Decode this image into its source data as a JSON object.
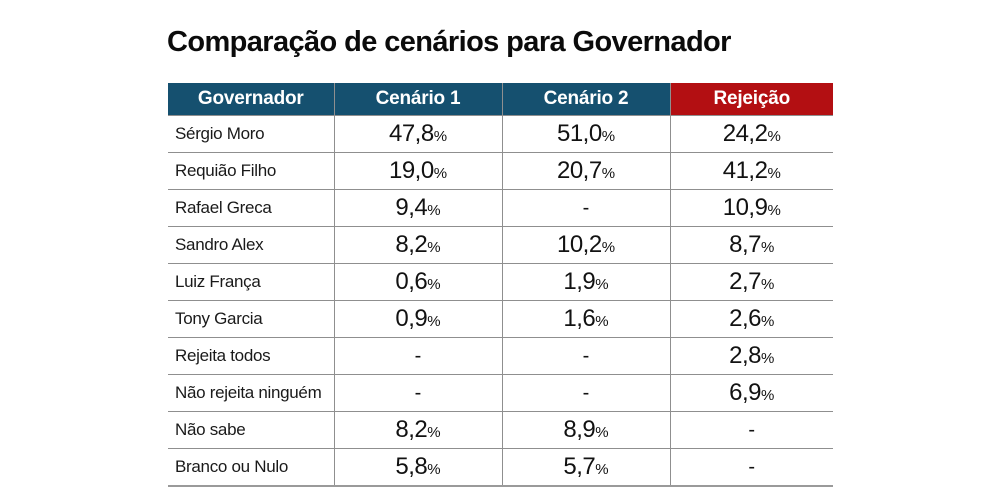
{
  "title": "Comparação de cenários para Governador",
  "colors": {
    "header_blue": "#15506f",
    "header_red": "#b30f12",
    "border_gray": "#8f8f8f",
    "text_dark": "#141414",
    "background": "#ffffff"
  },
  "chart_data": {
    "type": "table",
    "title": "Comparação de cenários para Governador",
    "columns": [
      "Governador",
      "Cenário 1",
      "Cenário 2",
      "Rejeição"
    ],
    "rows": [
      [
        "Sérgio Moro",
        "47,8%",
        "51,0%",
        "24,2%"
      ],
      [
        "Requião Filho",
        "19,0%",
        "20,7%",
        "41,2%"
      ],
      [
        "Rafael Greca",
        "9,4%",
        "-",
        "10,9%"
      ],
      [
        "Sandro Alex",
        "8,2%",
        "10,2%",
        "8,7%"
      ],
      [
        "Luiz França",
        "0,6%",
        "1,9%",
        "2,7%"
      ],
      [
        "Tony Garcia",
        "0,9%",
        "1,6%",
        "2,6%"
      ],
      [
        "Rejeita todos",
        "-",
        "-",
        "2,8%"
      ],
      [
        "Não rejeita ninguém",
        "-",
        "-",
        "6,9%"
      ],
      [
        "Não sabe",
        "8,2%",
        "8,9%",
        "-"
      ],
      [
        "Branco ou Nulo",
        "5,8%",
        "5,7%",
        "-"
      ]
    ],
    "layout": {
      "header_text_color": "#ffffff",
      "last_column_highlight": "red",
      "grid": "inner-borders-and-bottom"
    }
  }
}
